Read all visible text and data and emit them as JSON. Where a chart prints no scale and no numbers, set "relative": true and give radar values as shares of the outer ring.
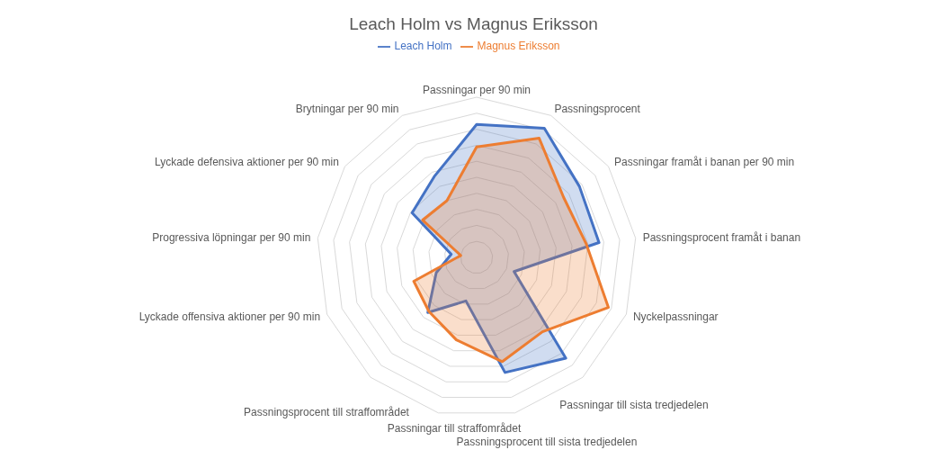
{
  "chart_data": {
    "type": "radar",
    "title": "Leach Holm vs Magnus Eriksson",
    "relative": true,
    "grid": true,
    "legend": "top",
    "categories": [
      "Passningar per 90 min",
      "Passningsprocent",
      "Passningar framåt i banan per 90 min",
      "Passningsprocent framåt i banan",
      "Nyckelpassningar",
      "Passningar till sista tredjedelen",
      "Passningsprocent till sista tredjedelen",
      "Passningar till straffområdet",
      "Passningsprocent till straffområdet",
      "Lyckade offensiva aktioner per 90 min",
      "Progressiva löpningar per 90 min",
      "Lyckade defensiva aktioner per 90 min",
      "Brytningar per 90 min"
    ],
    "series": [
      {
        "name": "Leach Holm",
        "color": "#4472c4",
        "values": [
          0.83,
          0.91,
          0.78,
          0.77,
          0.25,
          0.84,
          0.74,
          0.28,
          0.46,
          0.27,
          0.16,
          0.49,
          0.57
        ]
      },
      {
        "name": "Magnus Eriksson",
        "color": "#ed7d31",
        "values": [
          0.69,
          0.84,
          0.66,
          0.69,
          0.88,
          0.62,
          0.67,
          0.53,
          0.45,
          0.42,
          0.1,
          0.41,
          0.4
        ]
      }
    ]
  }
}
